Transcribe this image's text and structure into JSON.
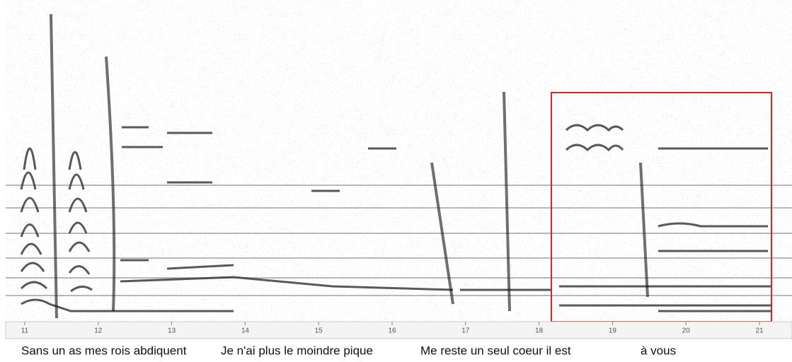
{
  "time_axis": {
    "ticks": [
      11,
      12,
      13,
      14,
      15,
      16,
      17,
      18,
      19,
      20,
      21
    ]
  },
  "lyrics": [
    "Sans un as mes rois abdiquent",
    "Je n'ai plus le moindre pique",
    "Me reste un seul coeur il est",
    "à vous"
  ]
}
